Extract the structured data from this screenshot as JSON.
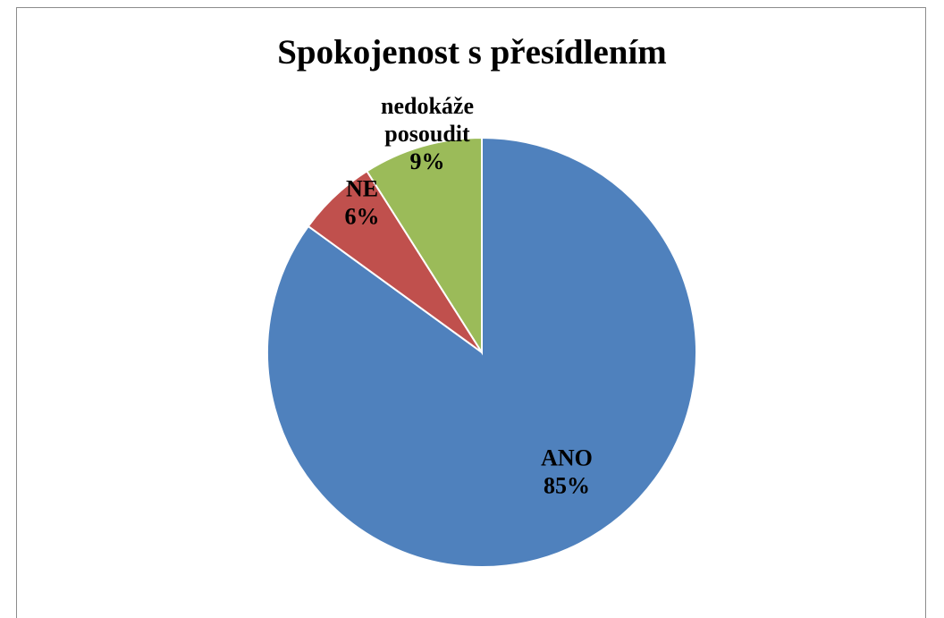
{
  "chart_data": {
    "type": "pie",
    "title": "Spokojenost s přesídlením",
    "slices": [
      {
        "label_lines": [
          "ANO",
          "85%"
        ],
        "value": 85,
        "color": "#4f81bd"
      },
      {
        "label_lines": [
          "NE",
          "6%"
        ],
        "value": 6,
        "color": "#c0504d"
      },
      {
        "label_lines": [
          "nedokáže",
          "posoudit",
          "9%"
        ],
        "value": 9,
        "color": "#9bbb59"
      }
    ],
    "start_angle_deg": 0,
    "direction": "clockwise"
  }
}
